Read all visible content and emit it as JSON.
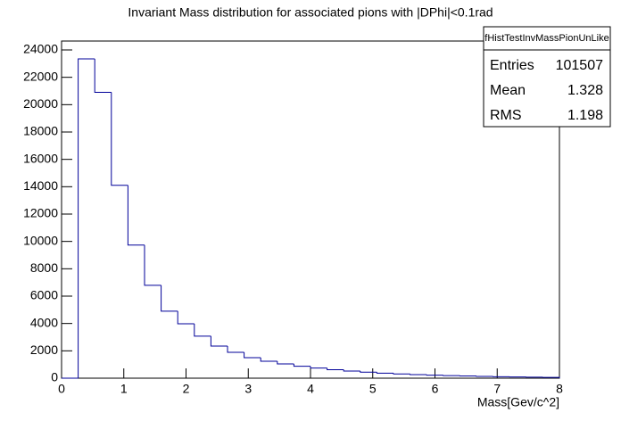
{
  "chart_data": {
    "type": "histogram",
    "title": "Invariant Mass distribution for associated pions with |DPhi|<0.1rad",
    "xlabel": "Mass[Gev/c^2]",
    "bins": [
      0,
      0.2667,
      0.5333,
      0.8,
      1.0667,
      1.3333,
      1.6,
      1.8667,
      2.1333,
      2.4,
      2.6667,
      2.9333,
      3.2,
      3.4667,
      3.7333,
      4,
      4.2667,
      4.5333,
      4.8,
      5.0667,
      5.3333,
      5.6,
      5.8667,
      6.1333,
      6.4,
      6.6667,
      6.9333,
      7.2,
      7.4667,
      7.7333,
      8
    ],
    "values": [
      0,
      23350,
      20900,
      14100,
      9730,
      6790,
      4900,
      3980,
      3070,
      2350,
      1890,
      1500,
      1240,
      1040,
      870,
      740,
      620,
      520,
      440,
      370,
      310,
      260,
      220,
      190,
      160,
      130,
      110,
      90,
      75,
      60
    ],
    "color": "#000099",
    "xlim": [
      0,
      8
    ],
    "xticks": [
      0,
      1,
      2,
      3,
      4,
      5,
      6,
      7,
      8
    ],
    "ylim": [
      0,
      24000
    ],
    "yticks": [
      0,
      2000,
      4000,
      6000,
      8000,
      10000,
      12000,
      14000,
      16000,
      18000,
      20000,
      22000,
      24000
    ],
    "stats": {
      "title": "fHistTestInvMassPionUnLike",
      "rows": [
        {
          "label": "Entries",
          "value": 101507
        },
        {
          "label": "Mean",
          "value": 1.328
        },
        {
          "label": "RMS",
          "value": 1.198
        }
      ]
    }
  }
}
